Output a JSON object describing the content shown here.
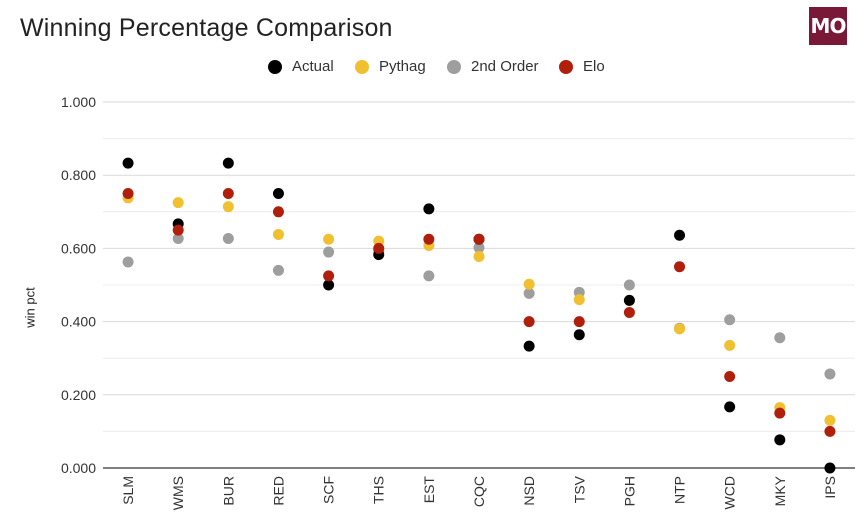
{
  "title": "Winning Percentage Comparison",
  "logo_text": "MO",
  "colors": {
    "logo_bg": "#7a1838",
    "Actual": "#000000",
    "Pythag": "#f0c030",
    "2nd Order": "#9e9e9e",
    "Elo": "#b01e0c"
  },
  "chart_data": {
    "type": "scatter",
    "title": "Winning Percentage Comparison",
    "xlabel": "",
    "ylabel": "win pct",
    "ylim": [
      0,
      1
    ],
    "yticks": [
      "0.000",
      "0.200",
      "0.400",
      "0.600",
      "0.800",
      "1.000"
    ],
    "grid": true,
    "legend_position": "top-center",
    "categories": [
      "SLM",
      "WMS",
      "BUR",
      "RED",
      "SCF",
      "THS",
      "EST",
      "CQC",
      "NSD",
      "TSV",
      "PGH",
      "NTP",
      "WCD",
      "MKY",
      "IPS"
    ],
    "series": [
      {
        "name": "Actual",
        "values": [
          0.833,
          0.667,
          0.833,
          0.75,
          0.5,
          0.583,
          0.708,
          0.625,
          0.333,
          0.364,
          0.458,
          0.636,
          0.167,
          0.077,
          0.0
        ]
      },
      {
        "name": "Pythag",
        "values": [
          0.738,
          0.725,
          0.714,
          0.638,
          0.625,
          0.62,
          0.608,
          0.578,
          0.502,
          0.46,
          0.458,
          0.38,
          0.335,
          0.165,
          0.13
        ]
      },
      {
        "name": "2nd Order",
        "values": [
          0.563,
          0.627,
          0.627,
          0.54,
          0.59,
          0.595,
          0.525,
          0.602,
          0.477,
          0.48,
          0.5,
          0.382,
          0.405,
          0.356,
          0.257
        ]
      },
      {
        "name": "Elo",
        "values": [
          0.75,
          0.65,
          0.75,
          0.7,
          0.525,
          0.6,
          0.625,
          0.625,
          0.4,
          0.4,
          0.425,
          0.55,
          0.25,
          0.15,
          0.1
        ]
      }
    ]
  }
}
